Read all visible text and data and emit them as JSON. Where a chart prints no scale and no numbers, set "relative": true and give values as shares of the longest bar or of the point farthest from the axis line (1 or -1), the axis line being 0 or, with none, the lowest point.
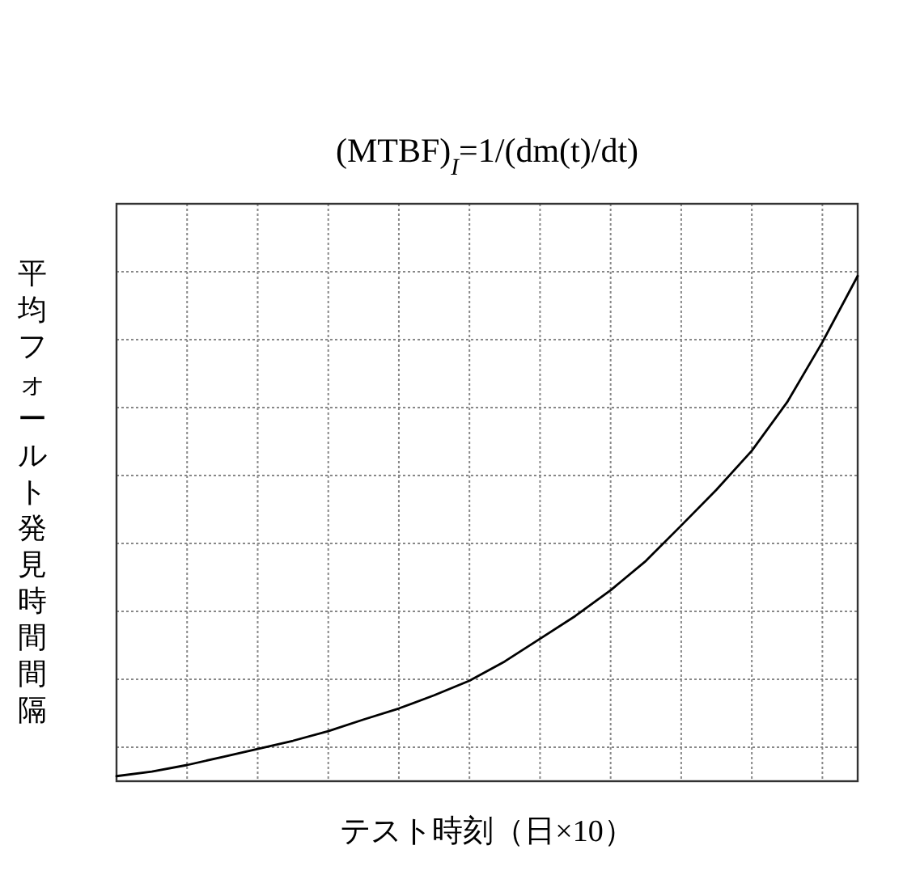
{
  "chart_data": {
    "type": "line",
    "title": "(MTBF)$_{I}$=1/(dm(t)/dt)",
    "xlabel": "テスト時刻（日×10）",
    "ylabel": "平均フォールト発見時間間隔",
    "relative": true,
    "grid": true,
    "categories": [
      null,
      null,
      null,
      null,
      null,
      null,
      null,
      null,
      null,
      null,
      null,
      null,
      null,
      null,
      null,
      null,
      null,
      null,
      null,
      null,
      null,
      null
    ],
    "series": [
      {
        "color": "#000000",
        "values": [
          0.01,
          0.019,
          0.032,
          0.048,
          0.064,
          0.08,
          0.099,
          0.122,
          0.144,
          0.17,
          0.199,
          0.237,
          0.282,
          0.327,
          0.378,
          0.436,
          0.506,
          0.577,
          0.654,
          0.75,
          0.869,
          1
        ]
      }
    ]
  }
}
